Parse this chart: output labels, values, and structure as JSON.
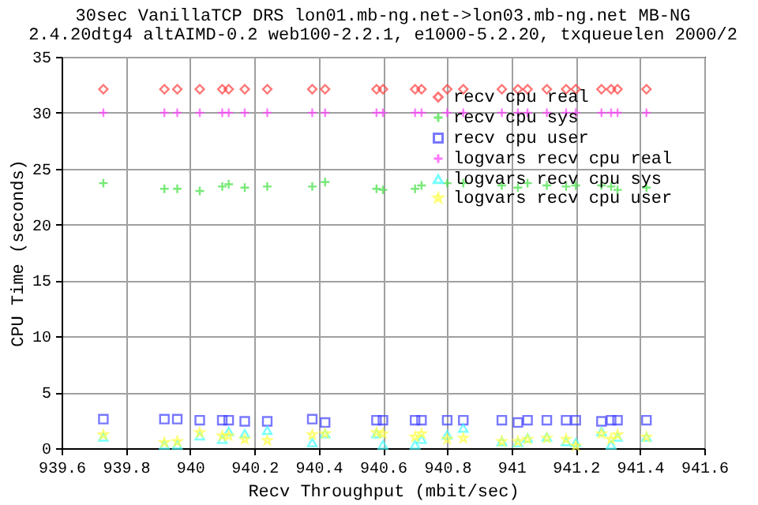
{
  "chart_data": {
    "type": "scatter",
    "title": "30sec VanillaTCP DRS lon01.mb-ng.net->lon03.mb-ng.net MB-NG",
    "subtitle": "2.4.20dtg4 altAIMD-0.2 web100-2.2.1, e1000-5.2.20, txqueuelen 2000/2",
    "xlabel": "Recv Throughput (mbit/sec)",
    "ylabel": "CPU Time (seconds)",
    "x": [
      939.73,
      939.92,
      939.96,
      940.03,
      940.1,
      940.12,
      940.17,
      940.24,
      940.38,
      940.42,
      940.58,
      940.6,
      940.7,
      940.72,
      940.8,
      940.85,
      940.97,
      941.02,
      941.05,
      941.11,
      941.17,
      941.2,
      941.28,
      941.31,
      941.33,
      941.42
    ],
    "series": [
      {
        "name": "recv cpu real",
        "color": "#ff4040",
        "marker": "diamond",
        "values": [
          32.1,
          32.1,
          32.1,
          32.1,
          32.1,
          32.1,
          32.1,
          32.1,
          32.1,
          32.1,
          32.1,
          32.1,
          32.1,
          32.1,
          32.1,
          32.1,
          32.1,
          32.1,
          32.1,
          32.1,
          32.1,
          32.1,
          32.1,
          32.1,
          32.1,
          32.1
        ]
      },
      {
        "name": "recv cpu sys",
        "color": "#40e040",
        "marker": "cross",
        "values": [
          23.7,
          23.2,
          23.2,
          23.0,
          23.4,
          23.6,
          23.3,
          23.4,
          23.4,
          23.8,
          23.2,
          23.1,
          23.2,
          23.5,
          23.7,
          23.7,
          23.5,
          23.3,
          23.7,
          23.5,
          23.4,
          23.5,
          23.5,
          23.4,
          23.1,
          23.3
        ]
      },
      {
        "name": "recv cpu user",
        "color": "#4040ff",
        "marker": "square",
        "values": [
          2.6,
          2.6,
          2.6,
          2.5,
          2.5,
          2.5,
          2.4,
          2.4,
          2.6,
          2.3,
          2.5,
          2.5,
          2.5,
          2.5,
          2.5,
          2.5,
          2.5,
          2.3,
          2.5,
          2.5,
          2.5,
          2.5,
          2.4,
          2.5,
          2.5,
          2.5
        ]
      },
      {
        "name": "logvars recv cpu real",
        "color": "#ff40ff",
        "marker": "cross",
        "values": [
          30,
          30,
          30,
          30,
          30,
          30,
          30,
          30,
          30,
          30,
          30,
          30,
          30,
          30,
          30,
          30,
          30,
          30,
          30,
          30,
          30,
          30,
          30,
          30,
          30,
          30
        ]
      },
      {
        "name": "logvars recv cpu sys",
        "color": "#40ffff",
        "marker": "triangle",
        "values": [
          1.0,
          0.3,
          0.3,
          1.1,
          0.8,
          1.5,
          1.3,
          1.6,
          0.5,
          1.3,
          1.3,
          0.3,
          0.3,
          0.8,
          1.2,
          1.8,
          0.6,
          0.5,
          0.9,
          1.0,
          0.6,
          0.5,
          1.5,
          0.3,
          1.0,
          1.0
        ]
      },
      {
        "name": "logvars recv cpu user",
        "color": "#ffff40",
        "marker": "star",
        "values": [
          1.2,
          0.5,
          0.6,
          1.4,
          1.1,
          1.1,
          0.8,
          0.7,
          1.2,
          1.3,
          1.4,
          1.3,
          1.0,
          1.3,
          0.8,
          0.9,
          0.6,
          0.6,
          0.8,
          0.9,
          0.8,
          0.2,
          1.3,
          0.8,
          1.2,
          1.0
        ]
      }
    ],
    "xlim": [
      939.6,
      941.6
    ],
    "xticks": [
      939.6,
      939.8,
      940,
      940.2,
      940.4,
      940.6,
      940.8,
      941,
      941.2,
      941.4,
      941.6
    ],
    "ylim": [
      0,
      35
    ],
    "yticks": [
      0,
      5,
      10,
      15,
      20,
      25,
      30,
      35
    ],
    "grid": true,
    "legend": "top right"
  }
}
